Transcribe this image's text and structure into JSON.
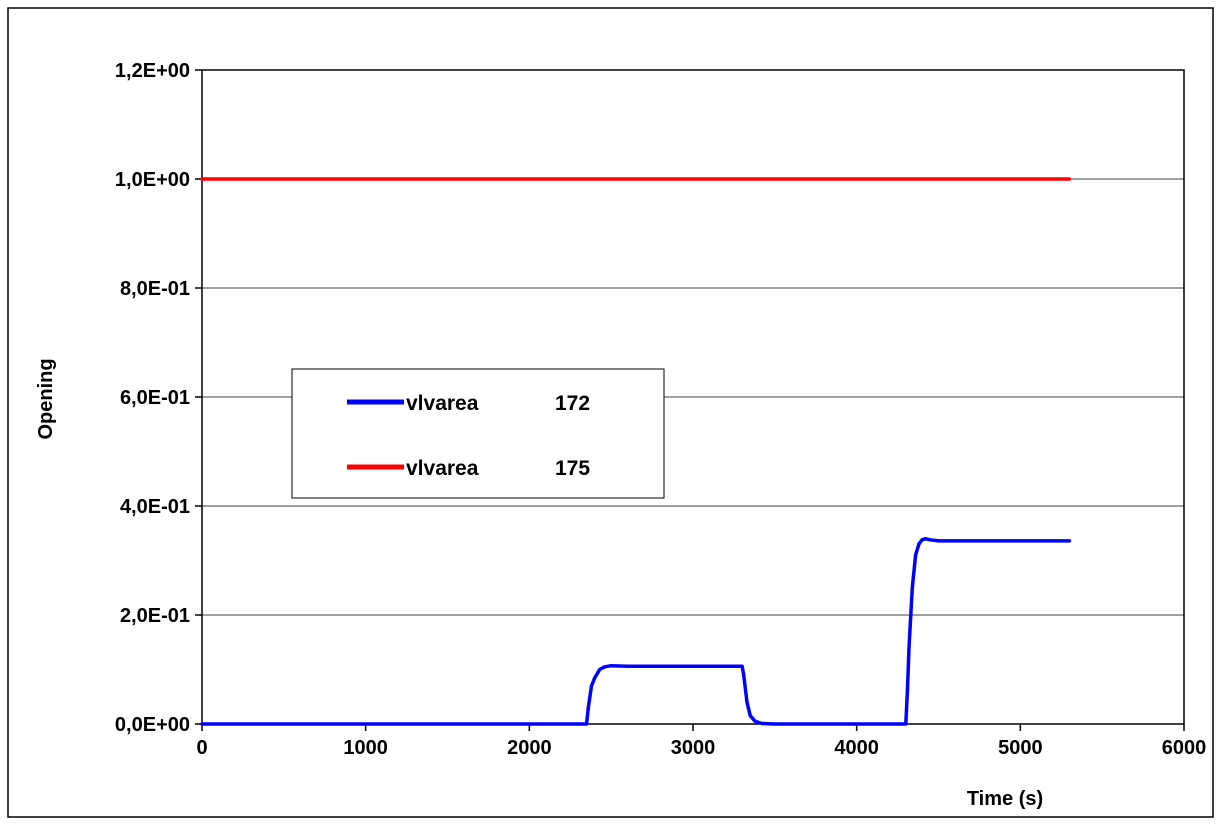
{
  "chart_data": {
    "type": "line",
    "title": "",
    "xlabel": "Time (s)",
    "ylabel": "Opening",
    "xlim": [
      0,
      6000
    ],
    "ylim": [
      0,
      1.2
    ],
    "x_ticks": [
      0,
      1000,
      2000,
      3000,
      4000,
      5000,
      6000
    ],
    "x_tick_labels": [
      "0",
      "1000",
      "2000",
      "3000",
      "4000",
      "5000",
      "6000"
    ],
    "y_ticks": [
      0,
      0.2,
      0.4,
      0.6,
      0.8,
      1.0,
      1.2
    ],
    "y_tick_labels": [
      "0,0E+00",
      "2,0E-01",
      "4,0E-01",
      "6,0E-01",
      "8,0E-01",
      "1,0E+00",
      "1,2E+00"
    ],
    "grid": "horizontal",
    "legend_position": "center-left",
    "series": [
      {
        "name": "vlvarea",
        "id_label": "172",
        "color": "#0000ff",
        "x": [
          0,
          2350,
          2360,
          2380,
          2400,
          2430,
          2460,
          2500,
          2600,
          3000,
          3300,
          3310,
          3330,
          3350,
          3380,
          3420,
          3500,
          4300,
          4310,
          4320,
          4340,
          4360,
          4380,
          4400,
          4420,
          4450,
          4500,
          5300
        ],
        "y": [
          0,
          0,
          0.03,
          0.07,
          0.085,
          0.1,
          0.105,
          0.107,
          0.106,
          0.106,
          0.106,
          0.09,
          0.04,
          0.015,
          0.005,
          0.001,
          0,
          0,
          0.06,
          0.14,
          0.25,
          0.31,
          0.33,
          0.338,
          0.34,
          0.338,
          0.336,
          0.336
        ]
      },
      {
        "name": "vlvarea",
        "id_label": "175",
        "color": "#ff0000",
        "x": [
          0,
          5300
        ],
        "y": [
          1.0,
          1.0
        ]
      }
    ]
  }
}
